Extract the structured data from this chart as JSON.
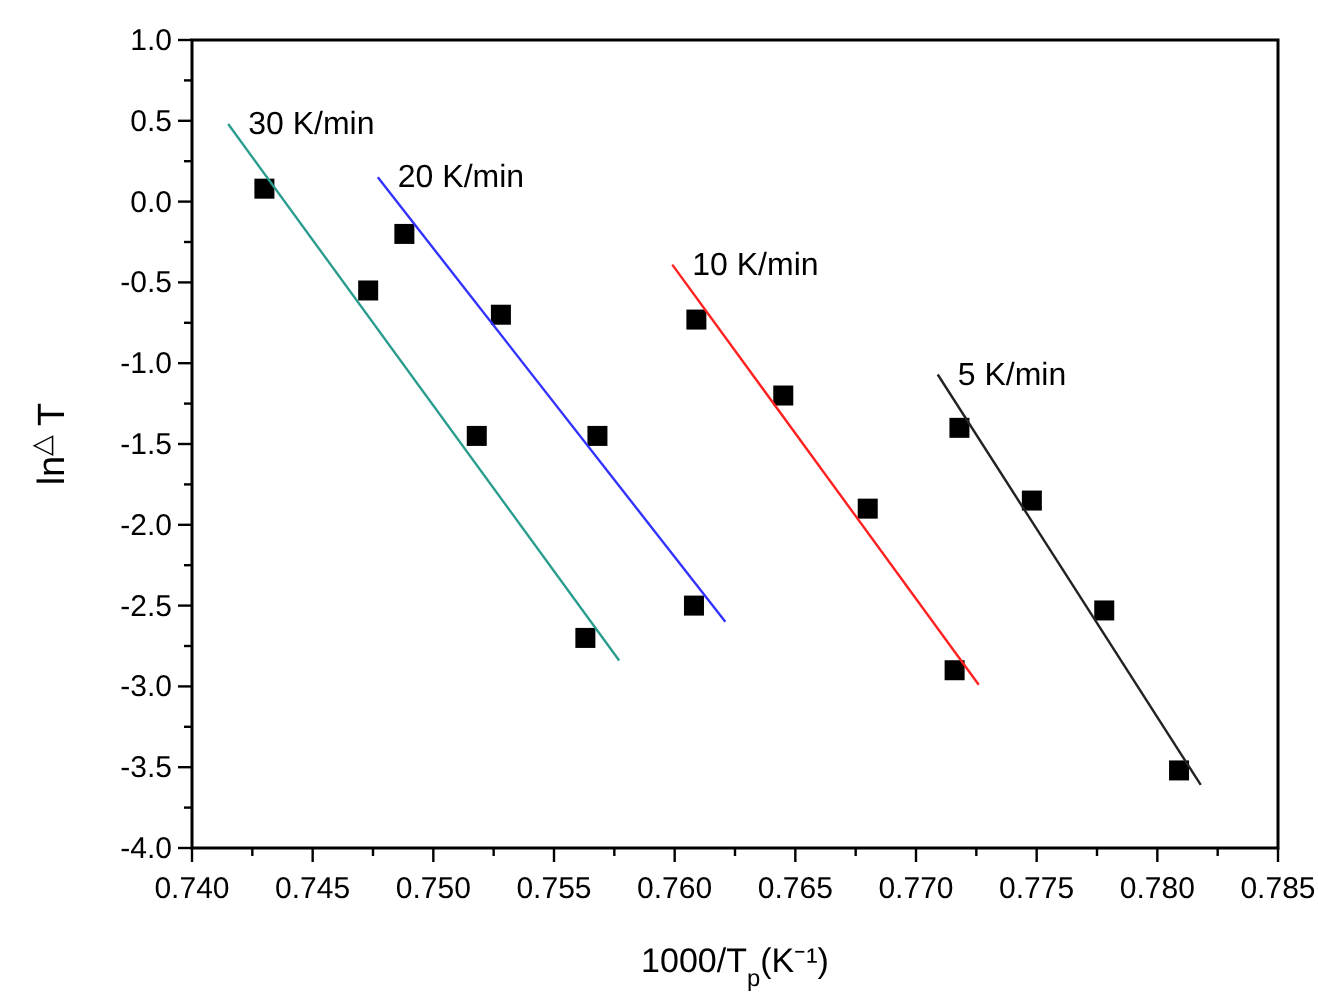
{
  "chart_data": {
    "type": "scatter",
    "xlabel": "1000/T$_{p}$(K⁻¹)",
    "ylabel": "ln$^{△}$ T",
    "xlim": [
      0.74,
      0.785
    ],
    "ylim": [
      -4.0,
      1.0
    ],
    "xticks": [
      {
        "value": 0.74,
        "label": "0.740"
      },
      {
        "value": 0.7425,
        "label": null
      },
      {
        "value": 0.745,
        "label": "0.745"
      },
      {
        "value": 0.7475,
        "label": null
      },
      {
        "value": 0.75,
        "label": "0.750"
      },
      {
        "value": 0.7525,
        "label": null
      },
      {
        "value": 0.755,
        "label": "0.755"
      },
      {
        "value": 0.7575,
        "label": null
      },
      {
        "value": 0.76,
        "label": "0.760"
      },
      {
        "value": 0.7625,
        "label": null
      },
      {
        "value": 0.765,
        "label": "0.765"
      },
      {
        "value": 0.7675,
        "label": null
      },
      {
        "value": 0.77,
        "label": "0.770"
      },
      {
        "value": 0.7725,
        "label": null
      },
      {
        "value": 0.775,
        "label": "0.775"
      },
      {
        "value": 0.7775,
        "label": null
      },
      {
        "value": 0.78,
        "label": "0.780"
      },
      {
        "value": 0.7825,
        "label": null
      },
      {
        "value": 0.785,
        "label": "0.785"
      }
    ],
    "yticks": [
      {
        "value": -4,
        "label": "-4.0"
      },
      {
        "value": -3.75,
        "label": null
      },
      {
        "value": -3.5,
        "label": "-3.5"
      },
      {
        "value": -3.25,
        "label": null
      },
      {
        "value": -3,
        "label": "-3.0"
      },
      {
        "value": -2.75,
        "label": null
      },
      {
        "value": -2.5,
        "label": "-2.5"
      },
      {
        "value": -2.25,
        "label": null
      },
      {
        "value": -2,
        "label": "-2.0"
      },
      {
        "value": -1.75,
        "label": null
      },
      {
        "value": -1.5,
        "label": "-1.5"
      },
      {
        "value": -1.25,
        "label": null
      },
      {
        "value": -1,
        "label": "-1.0"
      },
      {
        "value": -0.75,
        "label": null
      },
      {
        "value": -0.5,
        "label": "-0.5"
      },
      {
        "value": -0.25,
        "label": null
      },
      {
        "value": 0,
        "label": "0.0"
      },
      {
        "value": 0.25,
        "label": null
      },
      {
        "value": 0.5,
        "label": "0.5"
      },
      {
        "value": 0.75,
        "label": null
      },
      {
        "value": 1,
        "label": "1.0"
      }
    ],
    "grid": false,
    "marker": "square",
    "series": [
      {
        "color": "#000000",
        "x": [
          0.743,
          0.7473,
          0.7518,
          0.7563
        ],
        "values": [
          0.08,
          -0.55,
          -1.45,
          -2.7
        ]
      },
      {
        "color": "#000000",
        "x": [
          0.7488,
          0.7528,
          0.7568,
          0.7608
        ],
        "values": [
          -0.2,
          -0.7,
          -1.45,
          -2.5
        ]
      },
      {
        "color": "#000000",
        "x": [
          0.7609,
          0.7645,
          0.768,
          0.7716
        ],
        "values": [
          -0.73,
          -1.2,
          -1.9,
          -2.9
        ]
      },
      {
        "color": "#000000",
        "x": [
          0.7718,
          0.7748,
          0.7778,
          0.7809
        ],
        "values": [
          -1.4,
          -1.85,
          -2.53,
          -3.52
        ]
      },
      {
        "type": "line",
        "name": "30 K/min",
        "color": "#2a9d8f",
        "marker": "none",
        "x": [
          0.7415,
          0.7577
        ],
        "values": [
          0.48,
          -2.84
        ]
      },
      {
        "type": "line",
        "name": "20 K/min",
        "color": "#3333ff",
        "marker": "none",
        "x": [
          0.7477,
          0.7621
        ],
        "values": [
          0.15,
          -2.6
        ]
      },
      {
        "type": "line",
        "name": "10 K/min",
        "color": "#ff2020",
        "marker": "none",
        "x": [
          0.7599,
          0.7726
        ],
        "values": [
          -0.39,
          -2.99
        ]
      },
      {
        "type": "line",
        "name": "5 K/min",
        "color": "#222222",
        "marker": "none",
        "x": [
          0.7709,
          0.7818
        ],
        "values": [
          -1.07,
          -3.61
        ]
      }
    ]
  }
}
